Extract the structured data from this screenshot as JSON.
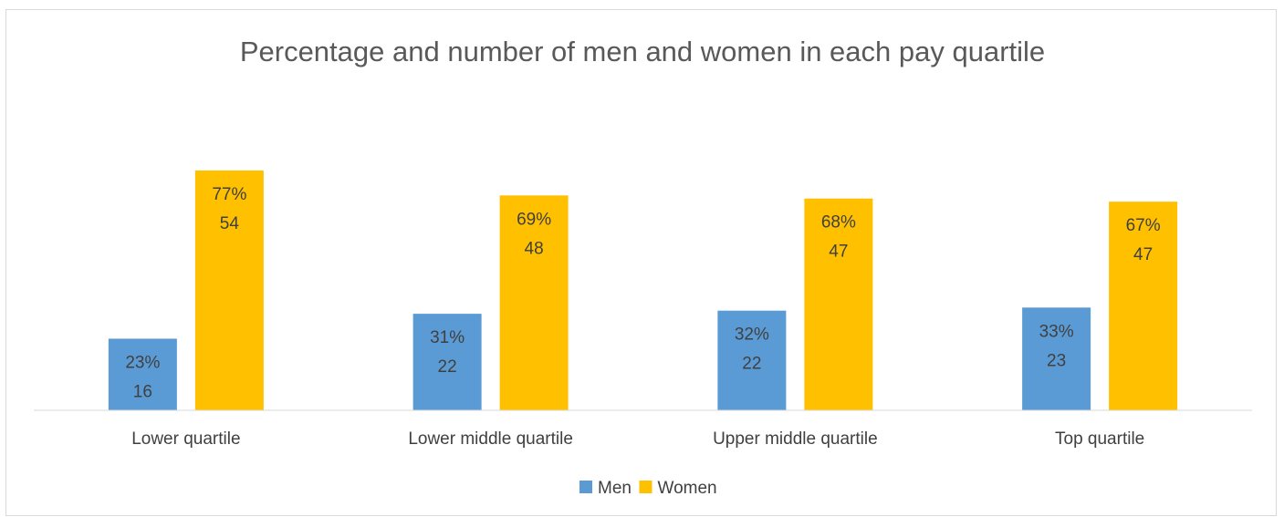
{
  "chart_data": {
    "type": "bar",
    "title": "Percentage and number of men and women in each pay quartile",
    "xlabel": "",
    "ylabel": "",
    "categories": [
      "Lower quartile",
      "Lower middle quartile",
      "Upper middle quartile",
      "Top quartile"
    ],
    "series": [
      {
        "name": "Men",
        "color": "#5b9bd5",
        "values": [
          23,
          31,
          32,
          33
        ],
        "percent_labels": [
          "23%",
          "31%",
          "32%",
          "33%"
        ],
        "count_labels": [
          "16",
          "22",
          "22",
          "23"
        ]
      },
      {
        "name": "Women",
        "color": "#ffc000",
        "values": [
          77,
          69,
          68,
          67
        ],
        "percent_labels": [
          "77%",
          "69%",
          "68%",
          "67%"
        ],
        "count_labels": [
          "54",
          "48",
          "47",
          "47"
        ]
      }
    ],
    "ylim": [
      0,
      100
    ],
    "grid": false,
    "axis_visible": false,
    "legend_position": "bottom"
  }
}
